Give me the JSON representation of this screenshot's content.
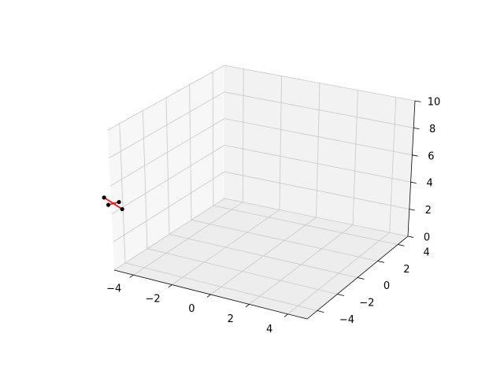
{
  "chart_data": {
    "type": "scatter",
    "projection": "3d",
    "title": "",
    "xlabel": "",
    "ylabel": "",
    "zlabel": "",
    "xlim": [
      -5,
      5
    ],
    "ylim": [
      -5,
      5
    ],
    "zlim": [
      0,
      10
    ],
    "xticks": [
      -4,
      -2,
      0,
      2,
      4
    ],
    "yticks": [
      -4,
      -2,
      0,
      2,
      4
    ],
    "zticks": [
      0,
      2,
      4,
      6,
      8,
      10
    ],
    "xtick_labels": [
      "−4",
      "−2",
      "0",
      "2",
      "4"
    ],
    "ytick_labels": [
      "−4",
      "−2",
      "0",
      "2",
      "4"
    ],
    "ztick_labels": [
      "0",
      "2",
      "4",
      "6",
      "8",
      "10"
    ],
    "grid": true,
    "points": [
      {
        "x": -5.35,
        "y": -5.0,
        "z": 5.05
      },
      {
        "x": -4.45,
        "y": -5.0,
        "z": 4.55
      },
      {
        "x": -4.6,
        "y": -5.0,
        "z": 5.0
      },
      {
        "x": -5.15,
        "y": -5.0,
        "z": 4.6
      }
    ],
    "segments": [
      [
        0,
        1
      ],
      [
        2,
        3
      ]
    ],
    "marker_color": "#000000",
    "line_color": "#ff0000",
    "pane_color": "#f2f2f2",
    "grid_color": "#c8c8c8"
  }
}
